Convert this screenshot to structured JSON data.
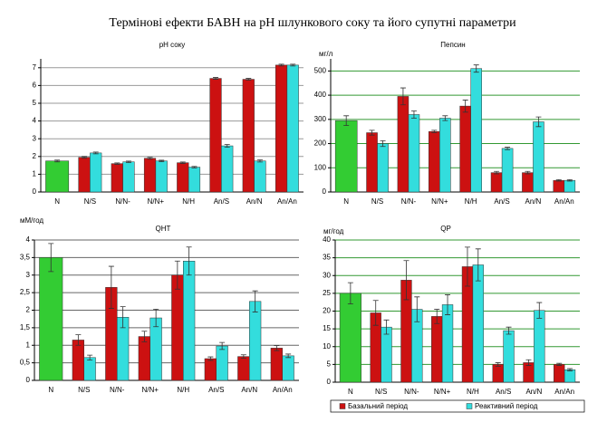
{
  "title": "Термінові ефекти БАВН на рН шлункового соку та його супутні параметри",
  "chart_data": [
    {
      "type": "bar",
      "title": "рН соку",
      "categories": [
        "N",
        "N/S",
        "N/N-",
        "N/N+",
        "N/H",
        "An/S",
        "An/N",
        "An/An"
      ],
      "series": [
        {
          "color": "#33cc33",
          "values": [
            1.75,
            null,
            null,
            null,
            null,
            null,
            null,
            null
          ],
          "errors": [
            0.05,
            null,
            null,
            null,
            null,
            null,
            null,
            null
          ]
        },
        {
          "color": "#cc1111",
          "values": [
            null,
            1.95,
            1.6,
            1.9,
            1.65,
            6.4,
            6.35,
            7.15
          ],
          "errors": [
            null,
            0.05,
            0.04,
            0.05,
            0.04,
            0.05,
            0.05,
            0.05
          ]
        },
        {
          "color": "#33dddd",
          "values": [
            null,
            2.2,
            1.7,
            1.75,
            1.4,
            2.6,
            1.75,
            7.15
          ],
          "errors": [
            null,
            0.05,
            0.04,
            0.04,
            0.04,
            0.08,
            0.06,
            0.05
          ]
        }
      ],
      "ylim": [
        0,
        7.5
      ],
      "yticks": [
        0,
        1,
        2,
        3,
        4,
        5,
        6,
        7
      ],
      "grid": true,
      "grid_color": "#999999"
    },
    {
      "type": "bar",
      "title": "Пепсин",
      "y_label": "мг/л",
      "categories": [
        "N",
        "N/S",
        "N/N-",
        "N/N+",
        "N/H",
        "An/S",
        "An/N",
        "An/An"
      ],
      "series": [
        {
          "color": "#33cc33",
          "values": [
            295,
            null,
            null,
            null,
            null,
            null,
            null,
            null
          ],
          "errors": [
            20,
            null,
            null,
            null,
            null,
            null,
            null,
            null
          ]
        },
        {
          "color": "#cc1111",
          "values": [
            null,
            245,
            395,
            250,
            355,
            80,
            80,
            48
          ],
          "errors": [
            null,
            10,
            35,
            5,
            25,
            5,
            5,
            3
          ]
        },
        {
          "color": "#33dddd",
          "values": [
            null,
            200,
            320,
            305,
            510,
            180,
            290,
            48
          ],
          "errors": [
            null,
            12,
            15,
            10,
            15,
            5,
            20,
            3
          ]
        }
      ],
      "ylim": [
        0,
        550
      ],
      "yticks": [
        0,
        100,
        200,
        300,
        400,
        500
      ],
      "grid": true,
      "grid_color": "#339933"
    },
    {
      "type": "bar",
      "title": "QНТ",
      "y_label": "мМ/год",
      "categories": [
        "N",
        "N/S",
        "N/N-",
        "N/N+",
        "N/H",
        "An/S",
        "An/N",
        "An/An"
      ],
      "series": [
        {
          "color": "#33cc33",
          "values": [
            3.5,
            null,
            null,
            null,
            null,
            null,
            null,
            null
          ],
          "errors": [
            0.4,
            null,
            null,
            null,
            null,
            null,
            null,
            null
          ]
        },
        {
          "color": "#cc1111",
          "values": [
            null,
            1.15,
            2.65,
            1.25,
            3.0,
            0.62,
            0.68,
            0.92
          ],
          "errors": [
            null,
            0.15,
            0.6,
            0.15,
            0.4,
            0.05,
            0.05,
            0.07
          ]
        },
        {
          "color": "#33dddd",
          "values": [
            null,
            0.65,
            1.8,
            1.78,
            3.4,
            0.98,
            2.25,
            0.7
          ],
          "errors": [
            null,
            0.07,
            0.3,
            0.25,
            0.4,
            0.1,
            0.3,
            0.05
          ]
        }
      ],
      "ylim": [
        0,
        4
      ],
      "yticks": [
        0,
        {
          "value": 0.5,
          "label": "0,5"
        },
        1,
        {
          "value": 1.5,
          "label": "1,5"
        },
        2,
        {
          "value": 2.5,
          "label": "2,5"
        },
        3,
        {
          "value": 3.5,
          "label": "3,5"
        },
        4
      ],
      "grid": true,
      "grid_color": "#666666"
    },
    {
      "type": "bar",
      "title": "QP",
      "y_label": "мг/год",
      "categories": [
        "N",
        "N/S",
        "N/N-",
        "N/N+",
        "N/H",
        "An/S",
        "An/N",
        "An/An"
      ],
      "series": [
        {
          "color": "#33cc33",
          "values": [
            25,
            null,
            null,
            null,
            null,
            null,
            null,
            null
          ],
          "errors": [
            3,
            null,
            null,
            null,
            null,
            null,
            null,
            null
          ]
        },
        {
          "name": "Базальний період",
          "color": "#cc1111",
          "values": [
            null,
            19.5,
            28.7,
            18.5,
            32.5,
            5,
            5.5,
            5
          ],
          "errors": [
            null,
            3.5,
            5.5,
            2,
            5.5,
            0.5,
            0.8,
            0.3
          ]
        },
        {
          "name": "Реактивний період",
          "color": "#33dddd",
          "values": [
            null,
            15.5,
            20.5,
            21.8,
            33,
            14.5,
            20.2,
            3.5
          ],
          "errors": [
            null,
            2,
            3.5,
            2.8,
            4.5,
            1,
            2.2,
            0.3
          ]
        }
      ],
      "ylim": [
        0,
        40
      ],
      "yticks": [
        0,
        5,
        10,
        15,
        20,
        25,
        30,
        35,
        40
      ],
      "grid": true,
      "grid_color": "#339933",
      "legend": "bottom"
    }
  ]
}
